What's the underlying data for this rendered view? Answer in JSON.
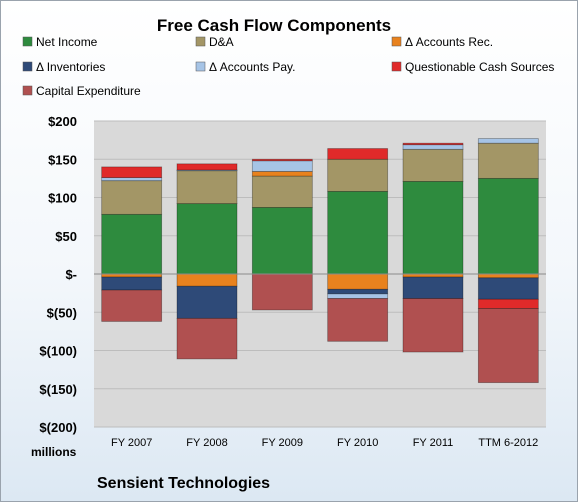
{
  "chart_data": {
    "type": "bar",
    "stacked": true,
    "title": "Free Cash Flow Components",
    "unit_label": "millions",
    "company": "Sensient Technologies",
    "categories": [
      "FY 2007",
      "FY 2008",
      "FY 2009",
      "FY 2010",
      "FY 2011",
      "TTM 6-2012"
    ],
    "ylim": [
      -200,
      200
    ],
    "yticks": [
      200,
      150,
      100,
      50,
      0,
      -50,
      -100,
      -150,
      -200
    ],
    "ytick_labels": [
      "$200",
      "$150",
      "$100",
      "$50",
      "$-",
      "$(50)",
      "$(100)",
      "$(150)",
      "$(200)"
    ],
    "legend_placement": "top",
    "series": [
      {
        "name": "Net Income",
        "color": "#2e8b3e",
        "values": [
          78,
          92,
          87,
          108,
          121,
          125
        ]
      },
      {
        "name": "D&A",
        "color": "#a39666",
        "values": [
          44,
          43,
          41,
          42,
          42,
          46
        ]
      },
      {
        "name": "Δ Accounts Rec.",
        "color": "#e8821e",
        "values": [
          -4,
          -16,
          6,
          -20,
          -4,
          -5
        ]
      },
      {
        "name": "Δ Inventories",
        "color": "#2e4a78",
        "values": [
          -17,
          -42,
          0,
          -6,
          -28,
          -28
        ]
      },
      {
        "name": "Δ Accounts Pay.",
        "color": "#a6c4e6",
        "values": [
          4,
          1,
          14,
          -6,
          6,
          6
        ]
      },
      {
        "name": "Questionable Cash Sources",
        "color": "#e02a2a",
        "values": [
          14,
          8,
          2,
          14,
          2,
          -12
        ]
      },
      {
        "name": "Capital Expenditure",
        "color": "#b05050",
        "values": [
          -41,
          -53,
          -47,
          -56,
          -70,
          -97
        ]
      }
    ]
  }
}
